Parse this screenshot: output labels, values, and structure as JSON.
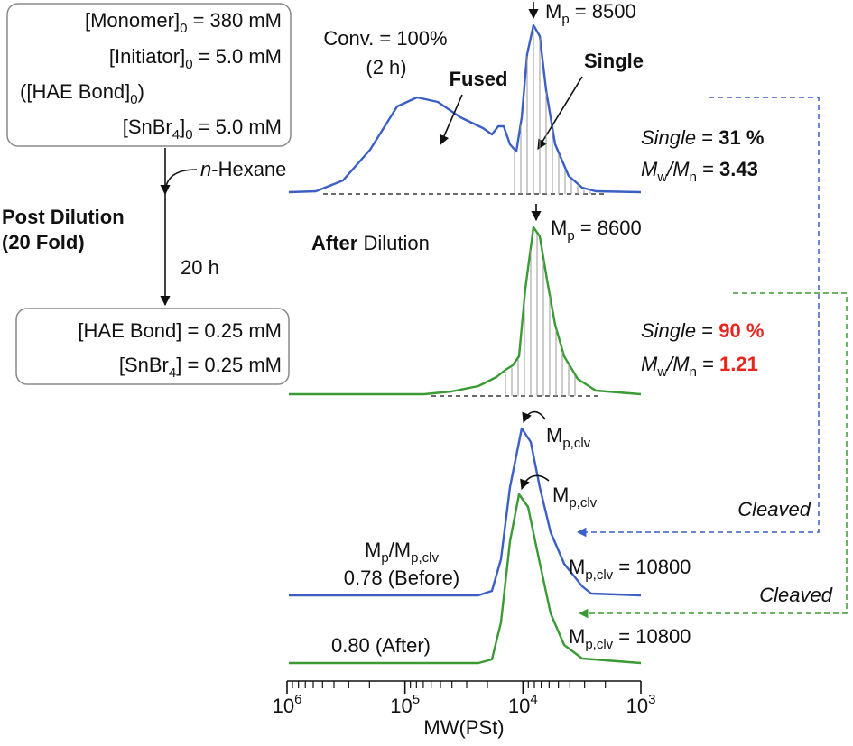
{
  "initial_conditions": [
    [
      "[Monomer]",
      {
        "text": "0",
        "sub": true
      },
      " = 380 mM"
    ],
    [
      "[Initiator]",
      {
        "text": "0",
        "sub": true
      },
      " = 5.0 mM"
    ],
    [
      "([HAE Bond]",
      {
        "text": "0",
        "sub": true
      },
      ")"
    ],
    [
      "[SnBr",
      {
        "text": "4",
        "sub": true
      },
      "]",
      {
        "text": "0",
        "sub": true
      },
      " = 5.0 mM"
    ]
  ],
  "solvent": [
    {
      "text": "n",
      "italic": true
    },
    "-Hexane"
  ],
  "step": {
    "title": "Post Dilution",
    "fold": "(20 Fold)",
    "time": "20 h"
  },
  "final_conditions": [
    [
      "[HAE Bond] = 0.25 mM"
    ],
    [
      "[SnBr",
      {
        "text": "4",
        "sub": true
      },
      "] = 0.25 mM"
    ]
  ],
  "before": {
    "conversion": "Conv. = 100%",
    "time": "(2 h)",
    "fused": "Fused",
    "single": "Single",
    "peak": [
      "M",
      {
        "text": "p",
        "sub": true
      },
      " = 8500"
    ],
    "single_fraction": [
      {
        "text": "Single",
        "italic": true
      },
      " = ",
      {
        "text": "31 %",
        "bold": true
      }
    ],
    "dispersity": [
      {
        "text": "M",
        "italic": true
      },
      {
        "text": "w",
        "sub": true
      },
      {
        "text": "/M",
        "italic": true
      },
      {
        "text": "n",
        "sub": true
      },
      " = ",
      {
        "text": "3.43",
        "bold": true
      }
    ]
  },
  "after": {
    "label": [
      {
        "text": "After",
        "bold": true
      },
      " Dilution"
    ],
    "peak": [
      "M",
      {
        "text": "p",
        "sub": true
      },
      " = 8600"
    ],
    "single_fraction": [
      {
        "text": "Single",
        "italic": true
      },
      " = ",
      {
        "text": "90 %",
        "bold": true,
        "color": "#e8251f"
      }
    ],
    "dispersity": [
      {
        "text": "M",
        "italic": true
      },
      {
        "text": "w",
        "sub": true
      },
      {
        "text": "/M",
        "italic": true
      },
      {
        "text": "n",
        "sub": true
      },
      " = ",
      {
        "text": "1.21",
        "bold": true,
        "color": "#e8251f"
      }
    ]
  },
  "cleaved": {
    "peak_label": [
      "M",
      {
        "text": "p,clv",
        "sub": true
      }
    ],
    "cleaved_label": "Cleaved",
    "ratio_title": [
      "M",
      {
        "text": "p",
        "sub": true
      },
      "/M",
      {
        "text": "p,clv",
        "sub": true
      }
    ],
    "ratio_before": "0.78 (Before)",
    "ratio_after": "0.80 (After)",
    "mp_before": [
      "M",
      {
        "text": "p,clv",
        "sub": true
      },
      " = 10800"
    ],
    "mp_after": [
      "M",
      {
        "text": "p,clv",
        "sub": true
      },
      " = 10800"
    ]
  },
  "axis": {
    "label": "MW(PSt)",
    "tick_labels": [
      [
        "10",
        {
          "text": "6",
          "sup": true
        }
      ],
      [
        "10",
        {
          "text": "5",
          "sup": true
        }
      ],
      [
        "10",
        {
          "text": "4",
          "sup": true
        }
      ],
      [
        "10",
        {
          "text": "3",
          "sup": true
        }
      ]
    ]
  }
}
